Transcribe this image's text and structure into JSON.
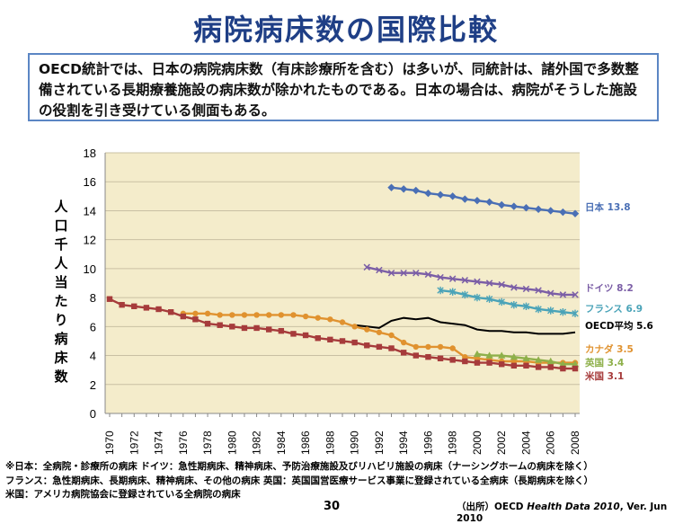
{
  "title": "病院病床数の国際比較",
  "summary": "OECD統計では、日本の病院病床数（有床診療所を含む）は多いが、同統計は、諸外国で多数整備されている長期療養施設の病床数が除かれたものである。日本の場合は、病院がそうした施設の役割を引き受けている側面もある。",
  "notes": [
    "※日本：全病院・診療所の病床  ドイツ：急性期病床、精神病床、予防治療施設及びリハビリ施設の病床（ナーシングホームの病床を除く）",
    "フランス：急性期病床、長期病床、精神病床、その他の病床   英国：英国国営医療サービス事業に登録されている全病床（長期病床を除く）",
    "米国：アメリカ病院協会に登録されている全病院の病床"
  ],
  "page_number": "30",
  "source": {
    "prefix": "（出所）OECD ",
    "italic": "Health Data 2010",
    "suffix": ", Ver. Jun 2010"
  },
  "chart_data": {
    "type": "line",
    "ylabel": "人口千人当たり病床数",
    "ylim": [
      0,
      18
    ],
    "yticks": [
      0,
      2,
      4,
      6,
      8,
      10,
      12,
      14,
      16,
      18
    ],
    "xlim": [
      1970,
      2008
    ],
    "xticks": [
      1970,
      1972,
      1974,
      1976,
      1978,
      1980,
      1982,
      1984,
      1986,
      1988,
      1990,
      1992,
      1994,
      1996,
      1998,
      2000,
      2002,
      2004,
      2006,
      2008
    ],
    "background": "#f4eccb",
    "series": [
      {
        "name": "日本",
        "end_label": "日本 13.8",
        "color": "#4a6fb5",
        "marker": "diamond",
        "x": [
          1993,
          1994,
          1995,
          1996,
          1997,
          1998,
          1999,
          2000,
          2001,
          2002,
          2003,
          2004,
          2005,
          2006,
          2007,
          2008
        ],
        "y": [
          15.6,
          15.5,
          15.4,
          15.2,
          15.1,
          15.0,
          14.8,
          14.7,
          14.6,
          14.4,
          14.3,
          14.2,
          14.1,
          14.0,
          13.9,
          13.8
        ]
      },
      {
        "name": "ドイツ",
        "end_label": "ドイツ 8.2",
        "color": "#7b5ea6",
        "marker": "cross",
        "x": [
          1991,
          1992,
          1993,
          1994,
          1995,
          1996,
          1997,
          1998,
          1999,
          2000,
          2001,
          2002,
          2003,
          2004,
          2005,
          2006,
          2007,
          2008
        ],
        "y": [
          10.1,
          9.9,
          9.7,
          9.7,
          9.7,
          9.6,
          9.4,
          9.3,
          9.2,
          9.1,
          9.0,
          8.9,
          8.7,
          8.6,
          8.5,
          8.3,
          8.2,
          8.2
        ]
      },
      {
        "name": "フランス",
        "end_label": "フランス 6.9",
        "color": "#4aa3b8",
        "marker": "star",
        "x": [
          1997,
          1998,
          1999,
          2000,
          2001,
          2002,
          2003,
          2004,
          2005,
          2006,
          2007,
          2008
        ],
        "y": [
          8.5,
          8.4,
          8.2,
          8.0,
          7.9,
          7.7,
          7.5,
          7.4,
          7.2,
          7.1,
          7.0,
          6.9
        ]
      },
      {
        "name": "OECD平均",
        "end_label": "OECD平均 5.6",
        "color": "#000000",
        "marker": "none",
        "x": [
          1990,
          1991,
          1992,
          1993,
          1994,
          1995,
          1996,
          1997,
          1998,
          1999,
          2000,
          2001,
          2002,
          2003,
          2004,
          2005,
          2006,
          2007,
          2008
        ],
        "y": [
          6.1,
          6.0,
          5.9,
          6.4,
          6.6,
          6.5,
          6.6,
          6.3,
          6.2,
          6.1,
          5.8,
          5.7,
          5.7,
          5.6,
          5.6,
          5.5,
          5.5,
          5.5,
          5.6
        ]
      },
      {
        "name": "カナダ",
        "end_label": "カナダ 3.5",
        "color": "#e0922f",
        "marker": "circle",
        "x": [
          1976,
          1977,
          1978,
          1979,
          1980,
          1981,
          1982,
          1983,
          1984,
          1985,
          1986,
          1987,
          1988,
          1989,
          1990,
          1991,
          1992,
          1993,
          1994,
          1995,
          1996,
          1997,
          1998,
          1999,
          2000,
          2001,
          2002,
          2003,
          2004,
          2005,
          2006,
          2007,
          2008
        ],
        "y": [
          6.9,
          6.9,
          6.9,
          6.8,
          6.8,
          6.8,
          6.8,
          6.8,
          6.8,
          6.8,
          6.7,
          6.6,
          6.5,
          6.3,
          6.0,
          5.8,
          5.6,
          5.4,
          4.9,
          4.6,
          4.6,
          4.6,
          4.5,
          3.9,
          3.8,
          3.7,
          3.6,
          3.6,
          3.6,
          3.5,
          3.5,
          3.5,
          3.5
        ]
      },
      {
        "name": "英国",
        "end_label": "英国 3.4",
        "color": "#8eb04a",
        "marker": "triangle",
        "x": [
          2000,
          2001,
          2002,
          2003,
          2004,
          2005,
          2006,
          2007,
          2008
        ],
        "y": [
          4.1,
          4.0,
          4.0,
          3.9,
          3.8,
          3.7,
          3.6,
          3.4,
          3.4
        ]
      },
      {
        "name": "米国",
        "end_label": "米国 3.1",
        "color": "#a63b3b",
        "marker": "square",
        "x": [
          1970,
          1971,
          1972,
          1973,
          1974,
          1975,
          1976,
          1977,
          1978,
          1979,
          1980,
          1981,
          1982,
          1983,
          1984,
          1985,
          1986,
          1987,
          1988,
          1989,
          1990,
          1991,
          1992,
          1993,
          1994,
          1995,
          1996,
          1997,
          1998,
          1999,
          2000,
          2001,
          2002,
          2003,
          2004,
          2005,
          2006,
          2007,
          2008
        ],
        "y": [
          7.9,
          7.5,
          7.4,
          7.3,
          7.2,
          7.0,
          6.7,
          6.5,
          6.2,
          6.1,
          6.0,
          5.9,
          5.9,
          5.8,
          5.7,
          5.5,
          5.4,
          5.2,
          5.1,
          5.0,
          4.9,
          4.7,
          4.6,
          4.5,
          4.2,
          4.0,
          3.9,
          3.8,
          3.7,
          3.6,
          3.5,
          3.5,
          3.4,
          3.3,
          3.3,
          3.2,
          3.2,
          3.1,
          3.1
        ]
      }
    ]
  }
}
